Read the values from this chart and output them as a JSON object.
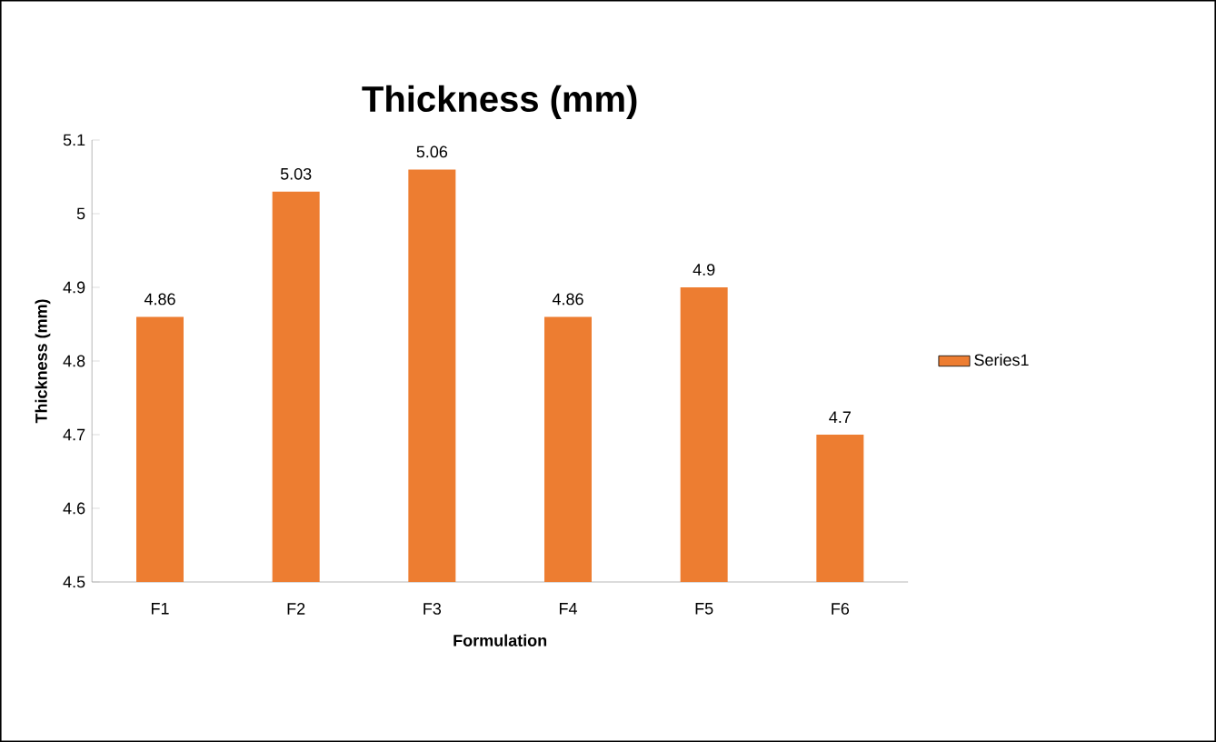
{
  "chart_data": {
    "type": "bar",
    "title": "Thickness (mm)",
    "xlabel": "Formulation",
    "ylabel": "Thickness  (mm)",
    "categories": [
      "F1",
      "F2",
      "F3",
      "F4",
      "F5",
      "F6"
    ],
    "series": [
      {
        "name": "Series1",
        "color": "#ed7d31",
        "values": [
          4.86,
          5.03,
          5.06,
          4.86,
          4.9,
          4.7
        ]
      }
    ],
    "ylim": [
      4.5,
      5.1
    ],
    "yticks": [
      4.5,
      4.6,
      4.7,
      4.8,
      4.9,
      5,
      5.1
    ],
    "data_labels": true,
    "legend": "right",
    "grid": false
  }
}
